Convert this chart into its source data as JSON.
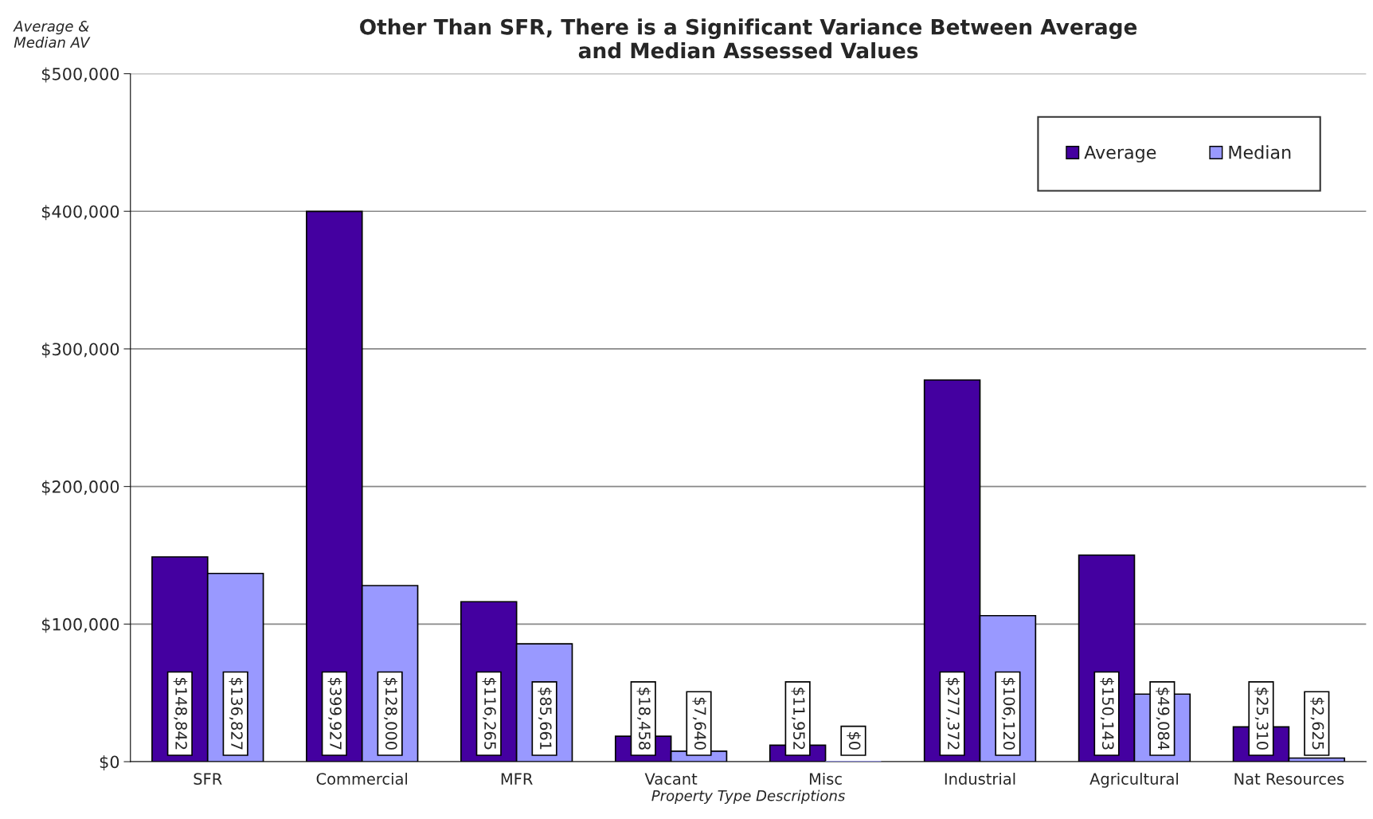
{
  "chart_data": {
    "type": "bar",
    "title": "Other Than SFR, There is a Significant Variance Between Average\nand Median Assessed Values",
    "xlabel": "Property Type Descriptions",
    "ylabel": "Average &\nMedian AV",
    "categories": [
      "SFR",
      "Commercial",
      "MFR",
      "Vacant",
      "Misc",
      "Industrial",
      "Agricultural",
      "Nat Resources"
    ],
    "series": [
      {
        "name": "Average",
        "color": "#4400a0",
        "values": [
          148842,
          399927,
          116265,
          18458,
          11952,
          277372,
          150143,
          25310
        ],
        "value_labels": [
          "$148,842",
          "$399,927",
          "$116,265",
          "$18,458",
          "$11,952",
          "$277,372",
          "$150,143",
          "$25,310"
        ]
      },
      {
        "name": "Median",
        "color": "#9999ff",
        "values": [
          136827,
          128000,
          85661,
          7640,
          0,
          106120,
          49084,
          2625
        ],
        "value_labels": [
          "$136,827",
          "$128,000",
          "$85,661",
          "$7,640",
          "$0",
          "$106,120",
          "$49,084",
          "$2,625"
        ]
      }
    ],
    "ylim": [
      0,
      500000
    ],
    "yticks": [
      {
        "value": 0,
        "label": "$0"
      },
      {
        "value": 100000,
        "label": "$100,000"
      },
      {
        "value": 200000,
        "label": "$200,000"
      },
      {
        "value": 300000,
        "label": "$300,000"
      },
      {
        "value": 400000,
        "label": "$400,000"
      },
      {
        "value": 500000,
        "label": "$500,000"
      }
    ],
    "grid": "y",
    "legend": "top right"
  }
}
